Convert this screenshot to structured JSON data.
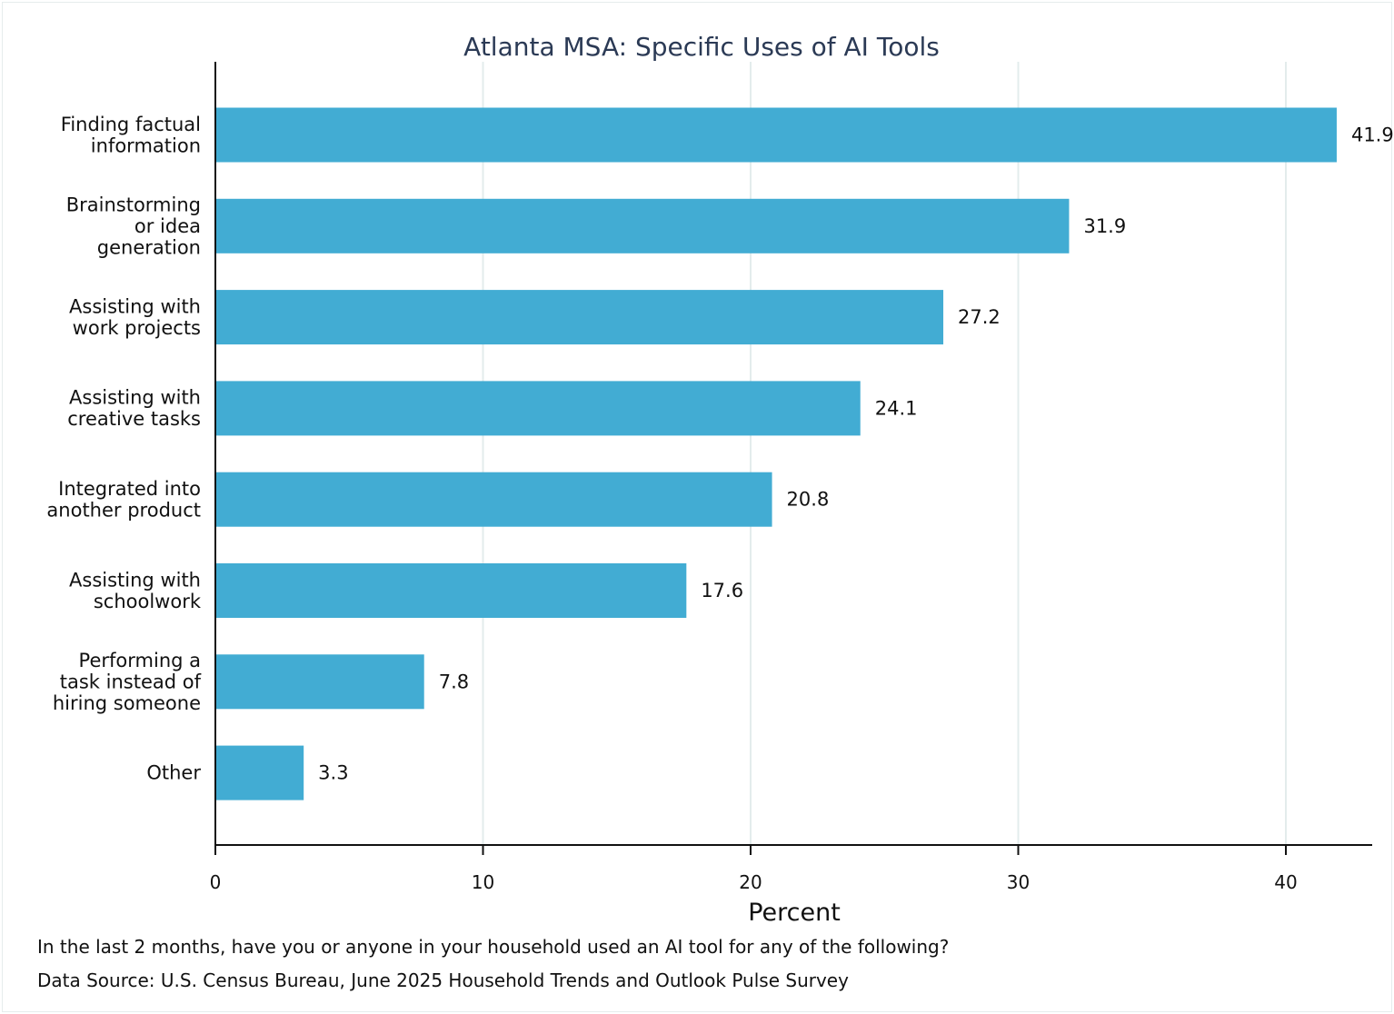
{
  "chart_data": {
    "type": "bar",
    "orientation": "horizontal",
    "title": "Atlanta MSA: Specific Uses of AI Tools",
    "xlabel": "Percent",
    "ylabel": "",
    "categories": [
      [
        "Finding factual",
        "information"
      ],
      [
        "Brainstorming",
        "or idea",
        "generation"
      ],
      [
        "Assisting with",
        "work projects"
      ],
      [
        "Assisting with",
        "creative tasks"
      ],
      [
        "Integrated into",
        "another product"
      ],
      [
        "Assisting with",
        "schoolwork"
      ],
      [
        "Performing a",
        "task instead of",
        "hiring someone"
      ],
      [
        "Other"
      ]
    ],
    "values": [
      41.9,
      31.9,
      27.2,
      24.1,
      20.8,
      17.6,
      7.8,
      3.3
    ],
    "value_labels": [
      "41.9",
      "31.9",
      "27.2",
      "24.1",
      "20.8",
      "17.6",
      "7.8",
      "3.3"
    ],
    "xlim": [
      0,
      43.2
    ],
    "xticks": [
      0,
      10,
      20,
      30,
      40
    ],
    "grid": true,
    "bar_color": "#42acd3",
    "grid_color": "#e3ecec",
    "title_color": "#2b3a55"
  },
  "notes": {
    "question": "In the last 2 months, have you or anyone in your household used an AI tool for any of the following?",
    "source": "Data Source: U.S. Census Bureau, June 2025 Household Trends and Outlook Pulse Survey"
  }
}
